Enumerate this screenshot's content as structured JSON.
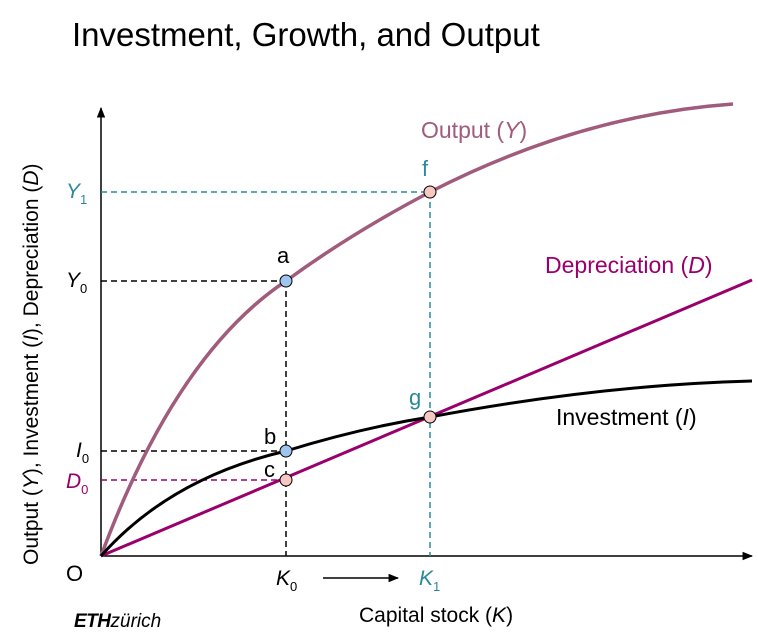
{
  "title": "Investment, Growth, and Output",
  "y_axis_label": {
    "pre": "Output (",
    "y": "Y",
    "mid1": "), Investment (",
    "i": "I",
    "mid2": "), Depreciation (",
    "d": "D",
    "post": ")"
  },
  "x_axis_label": {
    "pre": "Capital stock (",
    "k": "K",
    "post": ")"
  },
  "origin_label": "O",
  "curves": {
    "output": {
      "pre": "Output (",
      "sym": "Y",
      "post": ")",
      "color": "#a05b7d"
    },
    "depreciation": {
      "pre": "Depreciation (",
      "sym": "D",
      "post": ")",
      "color": "#99006b"
    },
    "investment": {
      "pre": "Investment (",
      "sym": "I",
      "post": ")",
      "color": "#000000"
    }
  },
  "points": {
    "a": "a",
    "b": "b",
    "c": "c",
    "f": "f",
    "g": "g"
  },
  "tick_labels": {
    "Y1": {
      "sym": "Y",
      "sub": "1"
    },
    "Y0": {
      "sym": "Y",
      "sub": "0"
    },
    "I0": {
      "sym": "I",
      "sub": "0"
    },
    "D0": {
      "sym": "D",
      "sub": "0"
    },
    "K0": {
      "sym": "K",
      "sub": "0"
    },
    "K1": {
      "sym": "K",
      "sub": "1"
    }
  },
  "colors": {
    "teal": "#2a8a9a",
    "blue_point": "#9fc5ee",
    "pink_point": "#f5c9c2",
    "magenta": "#99006b"
  },
  "logo": {
    "bold": "ETH",
    "rest": "zürich"
  }
}
